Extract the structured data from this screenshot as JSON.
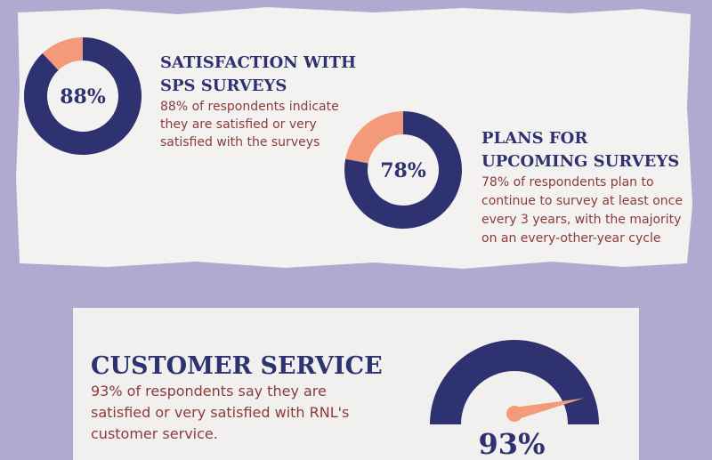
{
  "panels": [
    {
      "title_lines": [
        "SATISFACTION WITH",
        "SPS SURVEYS"
      ],
      "text_lines": [
        "88% of respondents indicate",
        "they are satisfied or very",
        "satisfied with the surveys"
      ],
      "donut": {
        "value": 88,
        "label": "88%",
        "color": "#2f3270",
        "rest_color": "#f29a7a"
      }
    },
    {
      "title_lines": [
        "PLANS FOR",
        "UPCOMING SURVEYS"
      ],
      "text_lines": [
        "78% of respondents plan to",
        "continue to survey at least once",
        "every 3 years, with the majority",
        "on an every-other-year cycle"
      ],
      "donut": {
        "value": 78,
        "label": "78%",
        "color": "#2f3270",
        "rest_color": "#f29a7a"
      }
    }
  ],
  "customer_service": {
    "title": "CUSTOMER SERVICE",
    "text_lines": [
      "93% of respondents say they are",
      "satisfied or very satisfied with RNL's",
      "customer service."
    ],
    "gauge": {
      "value": 93,
      "label": "93%",
      "color": "#2f3270",
      "needle_color": "#f29a7a"
    }
  }
}
